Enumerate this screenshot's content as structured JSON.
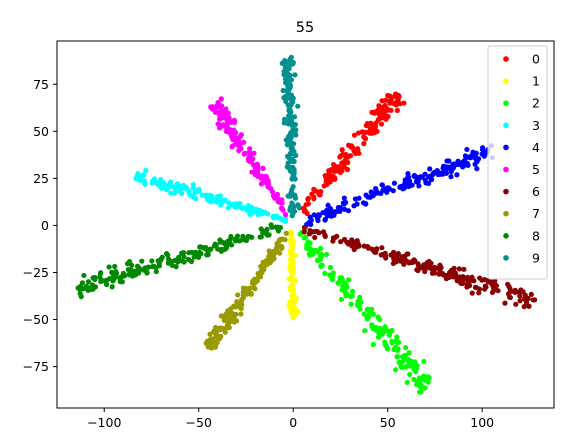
{
  "chart_data": {
    "type": "scatter",
    "title": "55",
    "xlabel": "",
    "ylabel": "",
    "xlim": [
      -125,
      138
    ],
    "ylim": [
      -97,
      98
    ],
    "xticks": [
      -100,
      -50,
      0,
      50,
      100
    ],
    "yticks": [
      -75,
      -50,
      -25,
      0,
      25,
      50,
      75
    ],
    "grid": false,
    "legend_position": "top-right",
    "series": [
      {
        "name": "0",
        "color": "#ff0000",
        "from": [
          5,
          7
        ],
        "to": [
          55,
          70
        ],
        "points": 150,
        "width": 2.2
      },
      {
        "name": "1",
        "color": "#ffff00",
        "from": [
          -1,
          -3
        ],
        "to": [
          0,
          -49
        ],
        "points": 100,
        "width": 0.8
      },
      {
        "name": "2",
        "color": "#00ff00",
        "from": [
          3,
          -4
        ],
        "to": [
          72,
          -88
        ],
        "points": 160,
        "width": 2.5
      },
      {
        "name": "3",
        "color": "#00ffff",
        "from": [
          -3,
          3
        ],
        "to": [
          -83,
          26
        ],
        "points": 140,
        "width": 1.5
      },
      {
        "name": "4",
        "color": "#0000ff",
        "from": [
          5,
          1
        ],
        "to": [
          106,
          40
        ],
        "points": 180,
        "width": 2.0
      },
      {
        "name": "5",
        "color": "#ff00ff",
        "from": [
          -3,
          5
        ],
        "to": [
          -42,
          65
        ],
        "points": 140,
        "width": 1.8
      },
      {
        "name": "6",
        "color": "#8b0000",
        "from": [
          5,
          -2
        ],
        "to": [
          128,
          -40
        ],
        "points": 200,
        "width": 2.0
      },
      {
        "name": "7",
        "color": "#999900",
        "from": [
          -3,
          -4
        ],
        "to": [
          -45,
          -65
        ],
        "points": 140,
        "width": 1.8
      },
      {
        "name": "8",
        "color": "#008800",
        "from": [
          -6,
          -1
        ],
        "to": [
          -114,
          -33
        ],
        "points": 190,
        "width": 2.0
      },
      {
        "name": "9",
        "color": "#009090",
        "from": [
          0,
          5
        ],
        "to": [
          -3,
          90
        ],
        "points": 150,
        "width": 1.5
      }
    ]
  }
}
